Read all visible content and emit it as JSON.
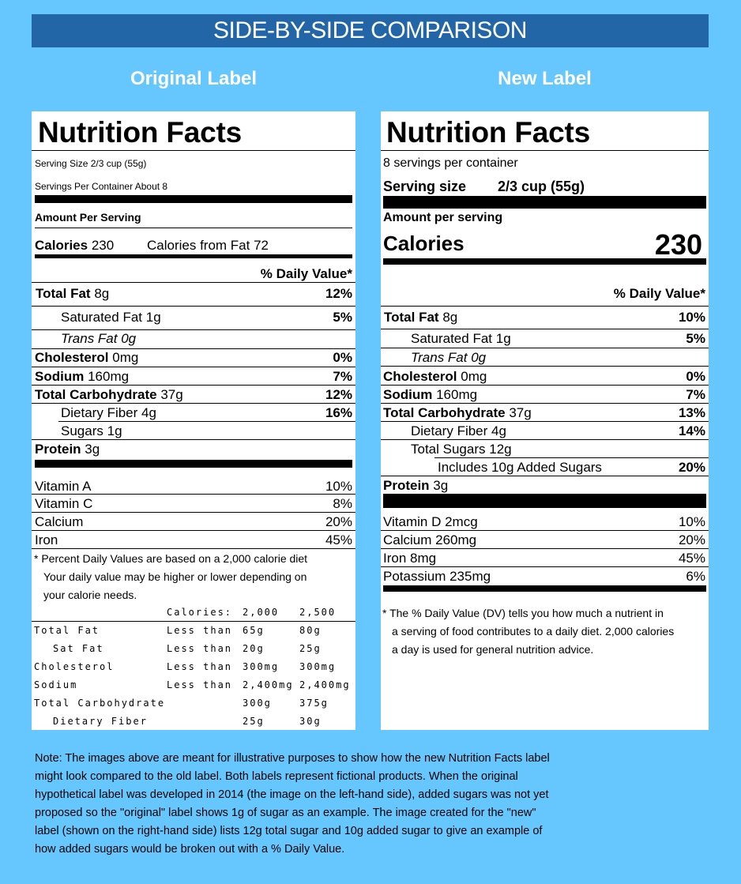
{
  "banner": "SIDE-BY-SIDE COMPARISON",
  "original": {
    "heading": "Original Label",
    "title": "Nutrition Facts",
    "serving_size": "Serving Size 2/3 cup (55g)",
    "servings_per_container": "Servings Per Container About 8",
    "amount_per_serving": "Amount Per Serving",
    "calories_label": "Calories",
    "calories_value": "230",
    "calories_from_fat": "Calories from Fat 72",
    "dv_header": "% Daily Value*",
    "nutrients": [
      {
        "label": "Total Fat",
        "amount": "8g",
        "dv": "12%"
      },
      {
        "label": "Saturated Fat",
        "amount": "1g",
        "dv": "5%"
      },
      {
        "label": "Trans Fat 0g"
      },
      {
        "label": "Cholesterol",
        "amount": "0mg",
        "dv": "0%"
      },
      {
        "label": "Sodium",
        "amount": "160mg",
        "dv": "7%"
      },
      {
        "label": "Total Carbohydrate",
        "amount": "37g",
        "dv": "12%"
      },
      {
        "label": "Dietary Fiber",
        "amount": "4g",
        "dv": "16%"
      },
      {
        "label": "Sugars",
        "amount": "1g"
      },
      {
        "label": "Protein",
        "amount": "3g"
      }
    ],
    "vitamins": [
      {
        "label": "Vitamin A",
        "dv": "10%"
      },
      {
        "label": "Vitamin C",
        "dv": "8%"
      },
      {
        "label": "Calcium",
        "dv": "20%"
      },
      {
        "label": "Iron",
        "dv": "45%"
      }
    ],
    "footnote": [
      "* Percent Daily Values are based on a 2,000 calorie diet",
      "Your daily value may be higher or lower depending on",
      "your calorie needs."
    ],
    "table_header": [
      "Calories:",
      "2,000",
      "2,500"
    ],
    "table_rows": [
      [
        "Total Fat",
        "Less than",
        "65g",
        "80g"
      ],
      [
        "Sat Fat",
        "Less than",
        "20g",
        "25g"
      ],
      [
        "Cholesterol",
        "Less than",
        "300mg",
        "300mg"
      ],
      [
        "Sodium",
        "Less than",
        "2,400mg",
        "2,400mg"
      ],
      [
        "Total Carbohydrate",
        "",
        "300g",
        "375g"
      ],
      [
        "Dietary Fiber",
        "",
        "25g",
        "30g"
      ]
    ]
  },
  "new": {
    "heading": "New Label",
    "title": "Nutrition Facts",
    "servings_per_container": "8 servings per container",
    "serving_size_label": "Serving size",
    "serving_size_value": "2/3 cup (55g)",
    "amount_per_serving": "Amount per serving",
    "calories_label": "Calories",
    "calories_value": "230",
    "dv_header": "% Daily Value*",
    "nutrients": [
      {
        "label": "Total Fat",
        "amount": "8g",
        "dv": "10%"
      },
      {
        "label": "Saturated Fat",
        "amount": "1g",
        "dv": "5%"
      },
      {
        "label": "Trans Fat 0g"
      },
      {
        "label": "Cholesterol",
        "amount": "0mg",
        "dv": "0%"
      },
      {
        "label": "Sodium",
        "amount": "160mg",
        "dv": "7%"
      },
      {
        "label": "Total Carbohydrate",
        "amount": "37g",
        "dv": "13%"
      },
      {
        "label": "Dietary Fiber",
        "amount": "4g",
        "dv": "14%"
      },
      {
        "label": "Total Sugars",
        "amount": "12g"
      },
      {
        "label": "Includes 10g Added Sugars",
        "dv": "20%"
      },
      {
        "label": "Protein",
        "amount": "3g"
      }
    ],
    "vitamins": [
      {
        "label": "Vitamin D 2mcg",
        "dv": "10%"
      },
      {
        "label": "Calcium 260mg",
        "dv": "20%"
      },
      {
        "label": "Iron 8mg",
        "dv": "45%"
      },
      {
        "label": "Potassium 235mg",
        "dv": "6%"
      }
    ],
    "footnote": [
      "* The % Daily Value (DV) tells you how much a nutrient in",
      "a serving of food contributes to a daily diet. 2,000 calories",
      "a day is used for general nutrition advice."
    ]
  },
  "note": "Note: The images above are meant for illustrative purposes to show how the new Nutrition Facts label might look compared to the old label. Both labels represent fictional products. When the original hypothetical label was developed in 2014 (the image on the left-hand side), added sugars was not yet proposed so the \"original\" label shows 1g of sugar as an example. The image created for the \"new\" label (shown on the right-hand side) lists 12g total sugar and 10g added sugar to give an example of how added sugars would be broken out with a % Daily Value."
}
